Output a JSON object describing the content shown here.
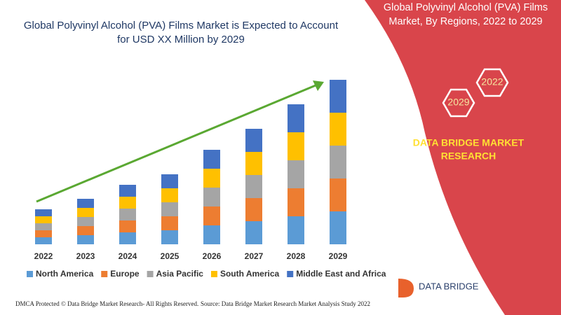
{
  "chart_data": {
    "type": "bar",
    "stacked": true,
    "title": [
      "Global Polyvinyl Alcohol (PVA) Films Market is Expected to Account",
      "for USD XX Million by 2029"
    ],
    "categories": [
      "2022",
      "2023",
      "2024",
      "2025",
      "2026",
      "2027",
      "2028",
      "2029"
    ],
    "series": [
      {
        "name": "North America",
        "color": "#5b9bd5",
        "values": [
          10,
          13,
          17,
          20,
          27,
          33,
          40,
          47
        ]
      },
      {
        "name": "Europe",
        "color": "#ed7d31",
        "values": [
          10,
          13,
          17,
          20,
          27,
          33,
          40,
          47
        ]
      },
      {
        "name": "Asia Pacific",
        "color": "#a5a5a5",
        "values": [
          10,
          13,
          17,
          20,
          27,
          33,
          40,
          47
        ]
      },
      {
        "name": "South America",
        "color": "#ffc000",
        "values": [
          10,
          13,
          17,
          20,
          27,
          33,
          40,
          47
        ]
      },
      {
        "name": "Middle East and Africa",
        "color": "#4472c4",
        "values": [
          10,
          13,
          17,
          20,
          27,
          33,
          40,
          47
        ]
      }
    ]
  },
  "panel": {
    "title": [
      "Global Polyvinyl Alcohol (PVA) Films",
      "Market, By Regions, 2022 to 2029"
    ],
    "badges": [
      "2022",
      "2029"
    ],
    "brand": [
      "DATA BRIDGE MARKET",
      "RESEARCH"
    ]
  },
  "logo": {
    "name": "DATA BRIDGE"
  },
  "footer": {
    "left": "DMCA Protected © Data Bridge Market Research- All Rights Reserved.",
    "right": "Source: Data Bridge Market Research Market Analysis Study 2022"
  }
}
